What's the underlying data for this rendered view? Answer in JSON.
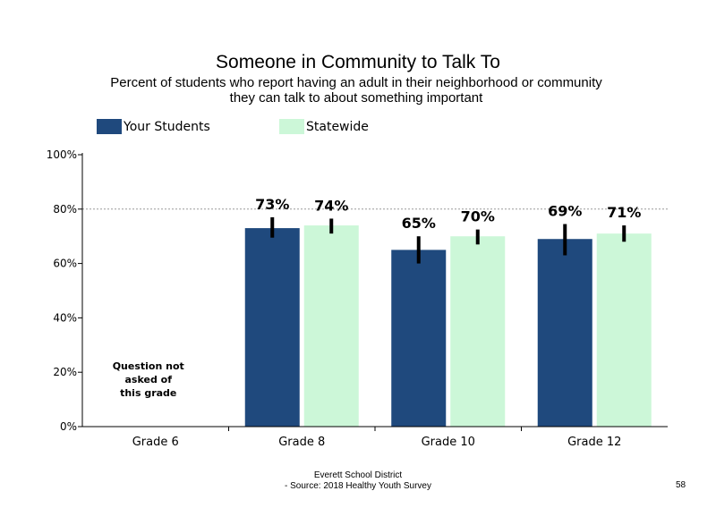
{
  "chart_data": {
    "type": "bar",
    "title": "Someone in Community to Talk To",
    "subtitle_lines": [
      "Percent of students who report having an adult in their neighborhood or community",
      "they can talk to about something important"
    ],
    "categories": [
      "Grade 6",
      "Grade 8",
      "Grade 10",
      "Grade 12"
    ],
    "series": [
      {
        "name": "Your Students",
        "color": "#1f497d",
        "values": [
          null,
          73,
          65,
          69
        ],
        "labels": [
          "",
          "73%",
          "65%",
          "69%"
        ],
        "error_low": [
          null,
          69.5,
          60,
          63
        ],
        "error_high": [
          null,
          77,
          70,
          74.5
        ]
      },
      {
        "name": "Statewide",
        "color": "#ccf7d8",
        "values": [
          null,
          74,
          70,
          71
        ],
        "labels": [
          "",
          "74%",
          "70%",
          "71%"
        ],
        "error_low": [
          null,
          71,
          67,
          68
        ],
        "error_high": [
          null,
          76.5,
          72.5,
          74
        ]
      }
    ],
    "yticks": [
      "0%",
      "20%",
      "40%",
      "60%",
      "80%",
      "100%"
    ],
    "ylim": [
      0,
      100
    ],
    "gridlines": [
      80
    ],
    "note_lines": [
      "Question not",
      "asked of",
      "this grade"
    ],
    "legend_position": "top-left"
  },
  "footer": {
    "line1": "Everett School District",
    "line2": "- Source: 2018 Healthy  Youth Survey"
  },
  "page_number": "58"
}
